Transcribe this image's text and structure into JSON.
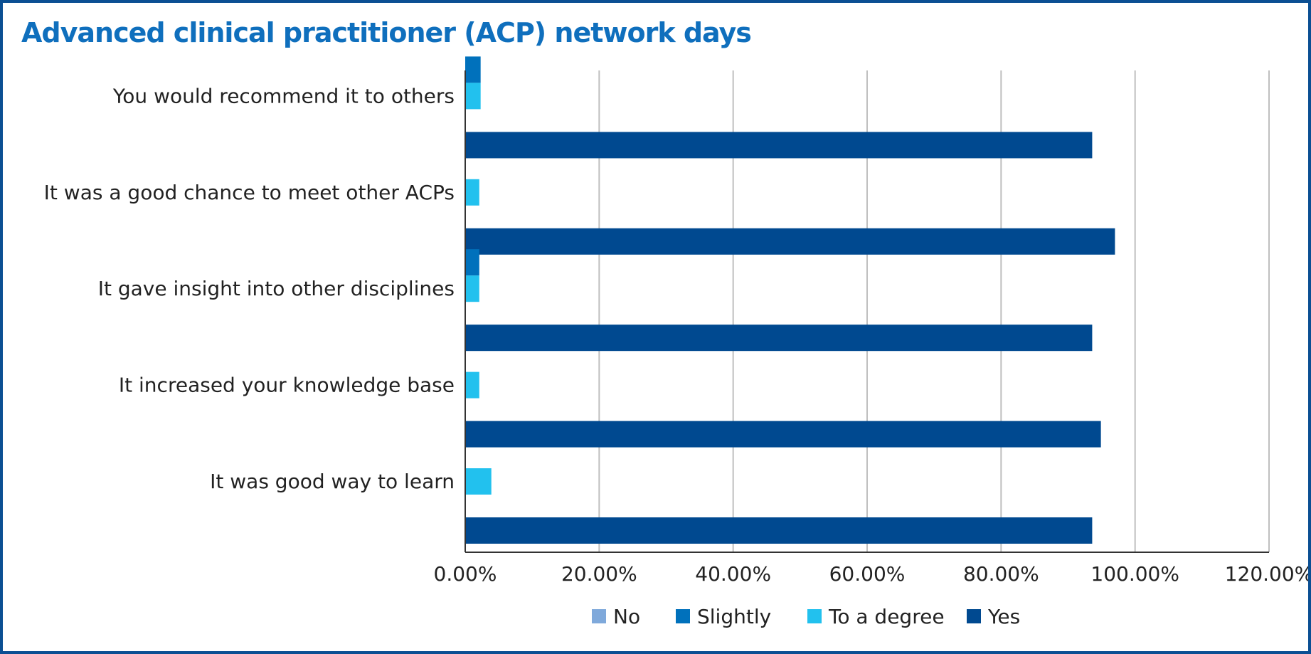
{
  "chart_data": {
    "type": "bar",
    "orientation": "horizontal",
    "title": "Advanced clinical practitioner (ACP) network days",
    "categories": [
      "You would recommend it to others",
      "It was a good chance to meet other ACPs",
      "It gave insight into other disciplines",
      "It increased your knowledge base",
      "It was good way to learn"
    ],
    "series": [
      {
        "name": "No",
        "color": "#7fa9db",
        "values": [
          0,
          0,
          0,
          0,
          0
        ]
      },
      {
        "name": "Slightly",
        "color": "#0071bc",
        "values": [
          2.3,
          0,
          2.1,
          0,
          0
        ]
      },
      {
        "name": "To a degree",
        "color": "#22c1ee",
        "values": [
          2.3,
          2.1,
          2.1,
          2.1,
          3.9
        ]
      },
      {
        "name": "Yes",
        "color": "#004990",
        "values": [
          93.6,
          97.0,
          93.6,
          94.9,
          93.6
        ]
      }
    ],
    "x_ticks": [
      "0.00%",
      "20.00%",
      "40.00%",
      "60.00%",
      "80.00%",
      "100.00%",
      "120.00%"
    ],
    "xlim": [
      0,
      120
    ],
    "x_unit": "percent",
    "grid": "vertical",
    "legend_position": "bottom"
  }
}
